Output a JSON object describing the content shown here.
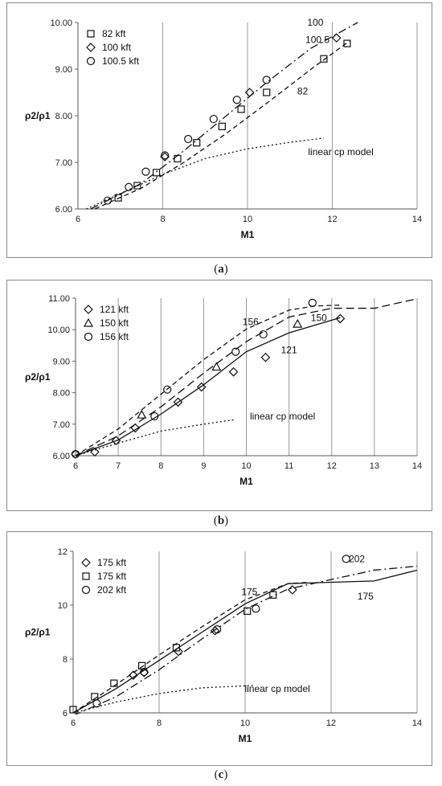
{
  "chart_data": [
    {
      "type": "line",
      "caption": "a",
      "xlabel": "M1",
      "ylabel": "ρ2/ρ1",
      "xlim": [
        6,
        14
      ],
      "ylim": [
        6,
        10
      ],
      "x_ticks": [
        "6",
        "8",
        "10",
        "12",
        "14"
      ],
      "y_ticks": [
        "6.00",
        "7.00",
        "8.00",
        "9.00",
        "10.00"
      ],
      "grid": "vertical",
      "legend_position": "top-left",
      "legend": [
        {
          "label": "82 kft",
          "marker": "square"
        },
        {
          "label": "100 kft",
          "marker": "diamond"
        },
        {
          "label": "100.5 kft",
          "marker": "circle"
        }
      ],
      "series": [
        {
          "name": "82 kft",
          "kind": "scatter",
          "marker": "square",
          "x": [
            6.95,
            7.4,
            7.85,
            8.35,
            8.8,
            9.4,
            9.85,
            10.45,
            11.8,
            12.35
          ],
          "y": [
            6.24,
            6.5,
            6.78,
            7.08,
            7.42,
            7.77,
            8.14,
            8.5,
            9.22,
            9.55
          ]
        },
        {
          "name": "100 kft",
          "kind": "scatter",
          "marker": "diamond",
          "x": [
            8.05,
            10.05,
            12.1
          ],
          "y": [
            7.12,
            8.5,
            9.67
          ]
        },
        {
          "name": "100.5 kft",
          "kind": "scatter",
          "marker": "circle",
          "x": [
            6.7,
            7.2,
            7.6,
            8.05,
            8.6,
            9.2,
            9.75,
            10.45
          ],
          "y": [
            6.18,
            6.47,
            6.8,
            7.15,
            7.5,
            7.93,
            8.34,
            8.77
          ]
        },
        {
          "name": "82",
          "kind": "line",
          "style": "dashed",
          "x": [
            6.4,
            7.5,
            8.5,
            9.5,
            10.5,
            11.5,
            12.4
          ],
          "y": [
            6.0,
            6.45,
            7.0,
            7.62,
            8.3,
            9.0,
            9.6
          ]
        },
        {
          "name": "100",
          "kind": "line",
          "style": "dashdot",
          "x": [
            6.3,
            7.5,
            8.5,
            9.5,
            10.5,
            11.5,
            12.6
          ],
          "y": [
            6.0,
            6.55,
            7.25,
            8.0,
            8.75,
            9.45,
            10.0
          ]
        },
        {
          "name": "linear cp model",
          "kind": "line",
          "style": "dotted",
          "x": [
            6.2,
            7,
            8,
            9,
            10,
            11,
            11.8
          ],
          "y": [
            6.0,
            6.33,
            6.74,
            7.08,
            7.29,
            7.43,
            7.52
          ]
        }
      ],
      "annotations": [
        {
          "text": "100",
          "x": 11.6,
          "y": 10.0
        },
        {
          "text": "100.5",
          "x": 11.65,
          "y": 9.63
        },
        {
          "text": "82",
          "x": 11.3,
          "y": 8.53
        },
        {
          "text": "linear cp model",
          "x": 12.2,
          "y": 7.22
        }
      ]
    },
    {
      "type": "line",
      "caption": "b",
      "xlabel": "M1",
      "ylabel": "ρ2/ρ1",
      "xlim": [
        6,
        14
      ],
      "ylim": [
        6,
        11
      ],
      "x_ticks": [
        "6",
        "7",
        "8",
        "9",
        "10",
        "11",
        "12",
        "13",
        "14"
      ],
      "y_ticks": [
        "6.00",
        "7.00",
        "8.00",
        "9.00",
        "10.00",
        "11.00"
      ],
      "grid": "vertical",
      "legend_position": "top-left",
      "legend": [
        {
          "label": "121 kft",
          "marker": "diamond"
        },
        {
          "label": "150 kft",
          "marker": "triangle"
        },
        {
          "label": "156 kft",
          "marker": "circle"
        }
      ],
      "series": [
        {
          "name": "121 kft",
          "kind": "scatter",
          "marker": "diamond",
          "x": [
            6.0,
            6.45,
            6.95,
            7.4,
            8.4,
            8.95,
            9.7,
            10.45,
            12.2
          ],
          "y": [
            6.05,
            6.12,
            6.48,
            6.88,
            7.7,
            8.18,
            8.66,
            9.12,
            10.35
          ]
        },
        {
          "name": "150 kft",
          "kind": "scatter",
          "marker": "triangle",
          "x": [
            7.55,
            9.3,
            11.2
          ],
          "y": [
            7.3,
            8.82,
            10.18
          ]
        },
        {
          "name": "156 kft",
          "kind": "scatter",
          "marker": "circle",
          "x": [
            6.0,
            7.85,
            8.15,
            9.75,
            10.4,
            11.55
          ],
          "y": [
            6.05,
            7.25,
            8.1,
            9.3,
            9.85,
            10.85
          ]
        },
        {
          "name": "121",
          "kind": "line",
          "style": "solid",
          "x": [
            6,
            7,
            8,
            9,
            10,
            11,
            12.2
          ],
          "y": [
            6.0,
            6.5,
            7.32,
            8.25,
            9.3,
            9.9,
            10.38
          ]
        },
        {
          "name": "150",
          "kind": "line",
          "style": "longdash",
          "x": [
            6,
            7,
            8,
            9,
            10,
            11,
            12,
            13,
            14
          ],
          "y": [
            6.0,
            6.63,
            7.55,
            8.62,
            9.62,
            10.4,
            10.68,
            10.68,
            10.98
          ]
        },
        {
          "name": "156",
          "kind": "line",
          "style": "dashed",
          "x": [
            6,
            7,
            8,
            9,
            10,
            11,
            11.6,
            12.2
          ],
          "y": [
            6.0,
            6.85,
            7.95,
            9.05,
            10.02,
            10.62,
            10.75,
            10.78
          ]
        },
        {
          "name": "linear cp model",
          "kind": "line",
          "style": "dotted",
          "x": [
            6,
            7,
            8,
            9,
            9.75
          ],
          "y": [
            6.0,
            6.4,
            6.78,
            7.0,
            7.15
          ]
        }
      ],
      "annotations": [
        {
          "text": "156",
          "x": 10.1,
          "y": 10.25
        },
        {
          "text": "150",
          "x": 11.7,
          "y": 10.38
        },
        {
          "text": "121",
          "x": 11.0,
          "y": 9.35
        },
        {
          "text": "linear cp model",
          "x": 10.85,
          "y": 7.25
        }
      ]
    },
    {
      "type": "line",
      "caption": "c",
      "xlabel": "M1",
      "ylabel": "ρ2/ρ1",
      "xlim": [
        6,
        14
      ],
      "ylim": [
        6,
        12
      ],
      "x_ticks": [
        "6",
        "8",
        "10",
        "12",
        "14"
      ],
      "y_ticks": [
        "6",
        "8",
        "10",
        "12"
      ],
      "grid": "vertical",
      "legend_position": "top-left",
      "legend": [
        {
          "label": "175 kft",
          "marker": "diamond"
        },
        {
          "label": "175 kft",
          "marker": "square"
        },
        {
          "label": "202 kft",
          "marker": "circle"
        }
      ],
      "series": [
        {
          "name": "175 kft",
          "kind": "scatter",
          "marker": "diamond",
          "x": [
            7.4,
            7.65,
            8.45,
            9.3,
            11.1
          ],
          "y": [
            7.4,
            7.5,
            8.28,
            9.05,
            10.57
          ]
        },
        {
          "name": "175 kft",
          "kind": "scatter",
          "marker": "square",
          "x": [
            6.0,
            6.5,
            6.95,
            7.6,
            8.4,
            10.05,
            10.65
          ],
          "y": [
            6.12,
            6.6,
            7.1,
            7.75,
            8.42,
            9.78,
            10.38
          ]
        },
        {
          "name": "202 kft",
          "kind": "scatter",
          "marker": "circle",
          "x": [
            6.55,
            7.65,
            9.35,
            10.25,
            12.35
          ],
          "y": [
            6.35,
            7.52,
            9.1,
            9.87,
            11.72
          ]
        },
        {
          "name": "175",
          "kind": "line",
          "style": "solid",
          "x": [
            6,
            7,
            8,
            9,
            10,
            11,
            12,
            13,
            14
          ],
          "y": [
            6.0,
            6.9,
            7.95,
            9.0,
            10.05,
            10.8,
            10.85,
            10.9,
            11.3
          ]
        },
        {
          "name": "175",
          "kind": "line",
          "style": "dashed",
          "x": [
            6,
            7,
            8,
            9,
            10,
            11,
            11.5
          ],
          "y": [
            6.0,
            7.05,
            8.15,
            9.2,
            10.2,
            10.8,
            10.85
          ]
        },
        {
          "name": "202",
          "kind": "line",
          "style": "dashdot",
          "x": [
            6,
            7,
            8,
            9,
            10,
            11,
            12,
            13,
            14
          ],
          "y": [
            5.9,
            6.6,
            7.6,
            8.75,
            9.85,
            10.6,
            10.95,
            11.3,
            11.45
          ]
        },
        {
          "name": "linear cp model",
          "kind": "line",
          "style": "dotted",
          "x": [
            6,
            7,
            8,
            9,
            10.2
          ],
          "y": [
            6.0,
            6.4,
            6.72,
            6.93,
            7.02
          ]
        }
      ],
      "annotations": [
        {
          "text": "175",
          "x": 10.1,
          "y": 10.5
        },
        {
          "text": "202",
          "x": 12.6,
          "y": 11.72
        },
        {
          "text": "175",
          "x": 12.8,
          "y": 10.33
        },
        {
          "text": "linear cp model",
          "x": 10.75,
          "y": 6.9
        }
      ]
    }
  ],
  "captions": {
    "a": "a",
    "b": "b",
    "c": "c"
  }
}
